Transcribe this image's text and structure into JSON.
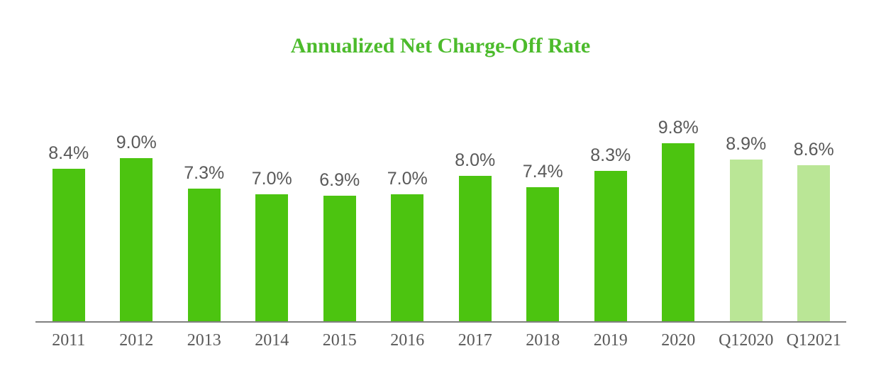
{
  "chart_data": {
    "type": "bar",
    "title": "Annualized Net Charge-Off Rate",
    "xlabel": "",
    "ylabel": "",
    "categories": [
      "2011",
      "2012",
      "2013",
      "2014",
      "2015",
      "2016",
      "2017",
      "2018",
      "2019",
      "2020",
      "Q12020",
      "Q12021"
    ],
    "values": [
      8.4,
      9.0,
      7.3,
      7.0,
      6.9,
      7.0,
      8.0,
      7.4,
      8.3,
      9.8,
      8.9,
      8.6
    ],
    "value_labels": [
      "8.4%",
      "9.0%",
      "7.3%",
      "7.0%",
      "6.9%",
      "7.0%",
      "8.0%",
      "7.4%",
      "8.3%",
      "9.8%",
      "8.9%",
      "8.6%"
    ],
    "bar_colors": [
      "#4CC410",
      "#4CC410",
      "#4CC410",
      "#4CC410",
      "#4CC410",
      "#4CC410",
      "#4CC410",
      "#4CC410",
      "#4CC410",
      "#4CC410",
      "#BAE696",
      "#BAE696"
    ],
    "ylim": [
      0,
      11.7
    ],
    "grid": false,
    "legend": "none",
    "colors": {
      "annual_bar": "#4CC410",
      "quarterly_bar": "#BAE696",
      "title": "#4CBB2C",
      "label_text": "#595959",
      "axis_line": "#808080"
    }
  }
}
